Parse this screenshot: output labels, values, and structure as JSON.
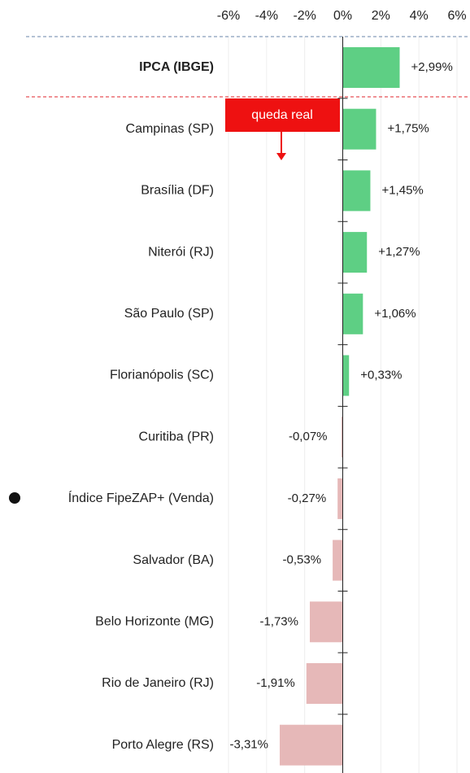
{
  "chart_data": {
    "type": "hbar",
    "categories": [
      "IPCA (IBGE)",
      "Campinas (SP)",
      "Brasília (DF)",
      "Niterói (RJ)",
      "São Paulo (SP)",
      "Florianópolis (SC)",
      "Curitiba (PR)",
      "Índice FipeZAP+ (Venda)",
      "Salvador (BA)",
      "Belo Horizonte (MG)",
      "Rio de Janeiro (RJ)",
      "Porto Alegre (RS)"
    ],
    "values": [
      2.99,
      1.75,
      1.45,
      1.27,
      1.06,
      0.33,
      -0.07,
      -0.27,
      -0.53,
      -1.73,
      -1.91,
      -3.31
    ],
    "value_labels": [
      "+2,99%",
      "+1,75%",
      "+1,45%",
      "+1,27%",
      "+1,06%",
      "+0,33%",
      "-0,07%",
      "-0,27%",
      "-0,53%",
      "-1,73%",
      "-1,91%",
      "-3,31%"
    ],
    "colors": [
      "#5ecf84",
      "#5ecf84",
      "#5ecf84",
      "#5ecf84",
      "#5ecf84",
      "#5ecf84",
      "#e6b8b8",
      "#e6b8b8",
      "#e6b8b8",
      "#e6b8b8",
      "#e6b8b8",
      "#e6b8b8"
    ],
    "xlim": [
      -6,
      6
    ],
    "xticks": [
      {
        "value": -6,
        "label": "-6%"
      },
      {
        "value": -4,
        "label": "-4%"
      },
      {
        "value": -2,
        "label": "-2%"
      },
      {
        "value": 0,
        "label": "0%"
      },
      {
        "value": 2,
        "label": "2%"
      },
      {
        "value": 4,
        "label": "4%"
      },
      {
        "value": 6,
        "label": "6%"
      }
    ],
    "grid": true,
    "annotations": [
      {
        "text": "queda real"
      }
    ]
  }
}
